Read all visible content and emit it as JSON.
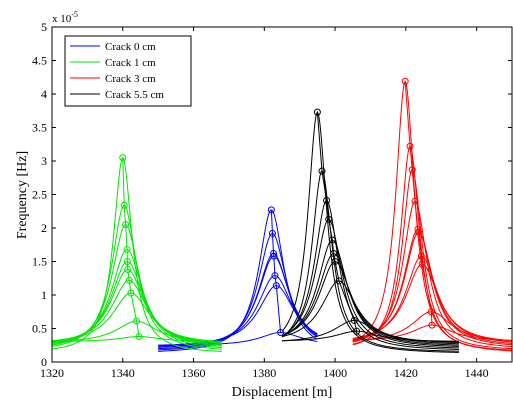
{
  "chart_data": {
    "type": "line",
    "title": "",
    "xlabel": "Displacement [m]",
    "ylabel": "Frequency [Hz]",
    "y_exponent_base": "x 10",
    "y_exponent_power": "-5",
    "xlim": [
      1320,
      1450
    ],
    "ylim": [
      0,
      5
    ],
    "xticks": [
      1320,
      1340,
      1360,
      1380,
      1400,
      1420,
      1440
    ],
    "yticks": [
      0,
      0.5,
      1,
      1.5,
      2,
      2.5,
      3,
      3.5,
      4,
      4.5,
      5
    ],
    "grid": false,
    "legend_position": "top-left",
    "series": [
      {
        "name": "Crack 0 cm",
        "color": "#0000ff",
        "x_range": [
          1350,
          1395
        ],
        "peaks": [
          {
            "x": 1382.0,
            "y": 2.27
          },
          {
            "x": 1382.3,
            "y": 1.92
          },
          {
            "x": 1382.6,
            "y": 1.62
          },
          {
            "x": 1382.7,
            "y": 1.58
          },
          {
            "x": 1383.0,
            "y": 1.29
          },
          {
            "x": 1383.4,
            "y": 1.14
          },
          {
            "x": 1384.6,
            "y": 0.44
          }
        ]
      },
      {
        "name": "Crack 1 cm",
        "color": "#00e600",
        "x_range": [
          1320,
          1368
        ],
        "peaks": [
          {
            "x": 1340.0,
            "y": 3.05
          },
          {
            "x": 1340.4,
            "y": 2.34
          },
          {
            "x": 1340.8,
            "y": 2.05
          },
          {
            "x": 1341.2,
            "y": 1.68
          },
          {
            "x": 1341.3,
            "y": 1.5
          },
          {
            "x": 1341.4,
            "y": 1.38
          },
          {
            "x": 1341.8,
            "y": 1.22
          },
          {
            "x": 1342.3,
            "y": 1.03
          },
          {
            "x": 1343.9,
            "y": 0.61
          },
          {
            "x": 1344.6,
            "y": 0.38
          }
        ]
      },
      {
        "name": "Crack 3 cm",
        "color": "#ff0000",
        "x_range": [
          1405,
          1450
        ],
        "peaks": [
          {
            "x": 1419.8,
            "y": 4.19
          },
          {
            "x": 1421.2,
            "y": 3.22
          },
          {
            "x": 1421.8,
            "y": 2.87
          },
          {
            "x": 1422.6,
            "y": 2.4
          },
          {
            "x": 1423.4,
            "y": 1.98
          },
          {
            "x": 1423.6,
            "y": 1.94
          },
          {
            "x": 1424.4,
            "y": 1.58
          },
          {
            "x": 1424.6,
            "y": 1.46
          },
          {
            "x": 1427.2,
            "y": 0.75
          },
          {
            "x": 1427.4,
            "y": 0.55
          }
        ]
      },
      {
        "name": "Crack 5.5 cm",
        "color": "#000000",
        "x_range": [
          1385,
          1435
        ],
        "peaks": [
          {
            "x": 1395.0,
            "y": 3.73
          },
          {
            "x": 1396.3,
            "y": 2.85
          },
          {
            "x": 1397.6,
            "y": 2.41
          },
          {
            "x": 1398.2,
            "y": 2.13
          },
          {
            "x": 1399.2,
            "y": 1.82
          },
          {
            "x": 1399.6,
            "y": 1.62
          },
          {
            "x": 1400.0,
            "y": 1.5
          },
          {
            "x": 1401.1,
            "y": 1.21
          },
          {
            "x": 1405.4,
            "y": 0.62
          },
          {
            "x": 1406.1,
            "y": 0.46
          }
        ]
      }
    ]
  }
}
